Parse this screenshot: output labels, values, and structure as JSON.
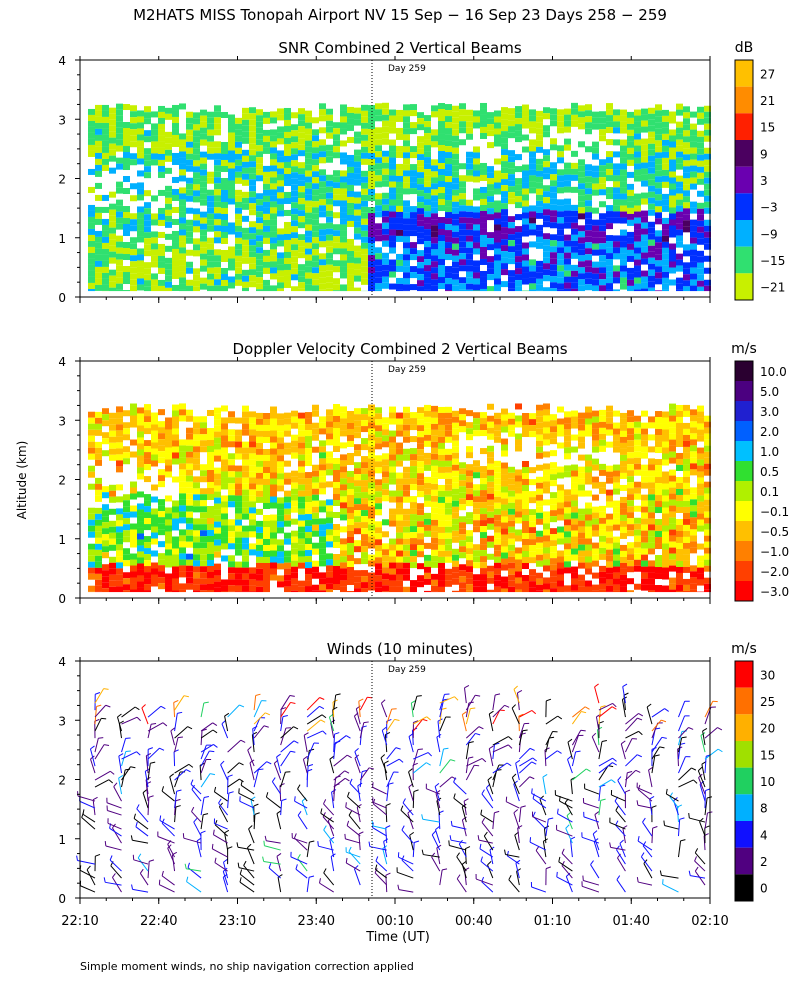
{
  "figure": {
    "title": "M2HATS MISS Tonopah Airport NV  15 Sep − 16 Sep 23 Days 258 − 259",
    "ylabel": "Altitude (km)",
    "xlabel": "Time (UT)",
    "footnote": "Simple moment winds, no ship navigation correction applied",
    "day_marker": "Day 259"
  },
  "chart_data": [
    {
      "type": "heatmap",
      "title": "SNR Combined 2 Vertical Beams",
      "units": "dB",
      "xlabel": "Time (UT)",
      "ylabel": "Altitude (km)",
      "x_ticks": [
        "22:10",
        "22:40",
        "23:10",
        "23:40",
        "00:10",
        "00:40",
        "01:10",
        "01:40",
        "02:10"
      ],
      "y_ticks": [
        "0",
        "1",
        "2",
        "3",
        "4"
      ],
      "ylim": [
        0,
        4
      ],
      "colorbar": {
        "labels": [
          "27",
          "21",
          "15",
          "9",
          "3",
          "−3",
          "−9",
          "−15",
          "−21"
        ],
        "colors": [
          "#ffc000",
          "#ff8c00",
          "#ff2000",
          "#4b0060",
          "#6a00b0",
          "#0030ff",
          "#00b0ff",
          "#30e070",
          "#c8f000"
        ]
      },
      "data_top_km": 3.2,
      "data_bottom_km": 0.1
    },
    {
      "type": "heatmap",
      "title": "Doppler Velocity Combined 2 Vertical Beams",
      "units": "m/s",
      "xlabel": "Time (UT)",
      "ylabel": "Altitude (km)",
      "x_ticks": [
        "22:10",
        "22:40",
        "23:10",
        "23:40",
        "00:10",
        "00:40",
        "01:10",
        "01:40",
        "02:10"
      ],
      "y_ticks": [
        "0",
        "1",
        "2",
        "3",
        "4"
      ],
      "ylim": [
        0,
        4
      ],
      "colorbar": {
        "labels": [
          "10.0",
          "5.0",
          "3.0",
          "2.0",
          "1.0",
          "0.5",
          "0.1",
          "−0.1",
          "−0.5",
          "−1.0",
          "−2.0",
          "−3.0"
        ],
        "colors": [
          "#2a0030",
          "#4b0080",
          "#2020d0",
          "#0060ff",
          "#00c0ff",
          "#30e030",
          "#b0f000",
          "#ffff00",
          "#ffc000",
          "#ff8000",
          "#ff4000",
          "#ff0000"
        ]
      },
      "data_top_km": 3.2,
      "data_bottom_km": 0.1
    },
    {
      "type": "scatter",
      "title": "Winds (10 minutes)",
      "units": "m/s",
      "xlabel": "Time (UT)",
      "ylabel": "Altitude (km)",
      "x_ticks": [
        "22:10",
        "22:40",
        "23:10",
        "23:40",
        "00:10",
        "00:40",
        "01:10",
        "01:40",
        "02:10"
      ],
      "y_ticks": [
        "0",
        "1",
        "2",
        "3",
        "4"
      ],
      "ylim": [
        0,
        4
      ],
      "colorbar": {
        "labels": [
          "30",
          "25",
          "20",
          "15",
          "10",
          "8",
          "4",
          "2",
          "0"
        ],
        "colors": [
          "#ff0000",
          "#ff7000",
          "#ffb000",
          "#a0e000",
          "#20d060",
          "#00b0ff",
          "#1010ff",
          "#500080",
          "#000000"
        ]
      },
      "barb_times": [
        "22:15",
        "22:25",
        "22:35",
        "22:45",
        "22:55",
        "23:05",
        "23:15",
        "23:25",
        "23:35",
        "23:45",
        "23:55",
        "00:05",
        "00:15",
        "00:25",
        "00:35",
        "00:45",
        "00:55",
        "01:05",
        "01:15",
        "01:25",
        "01:35",
        "01:45",
        "01:55",
        "02:05"
      ],
      "barb_top_km": 3.4,
      "barb_bottom_km": 0.1
    }
  ]
}
